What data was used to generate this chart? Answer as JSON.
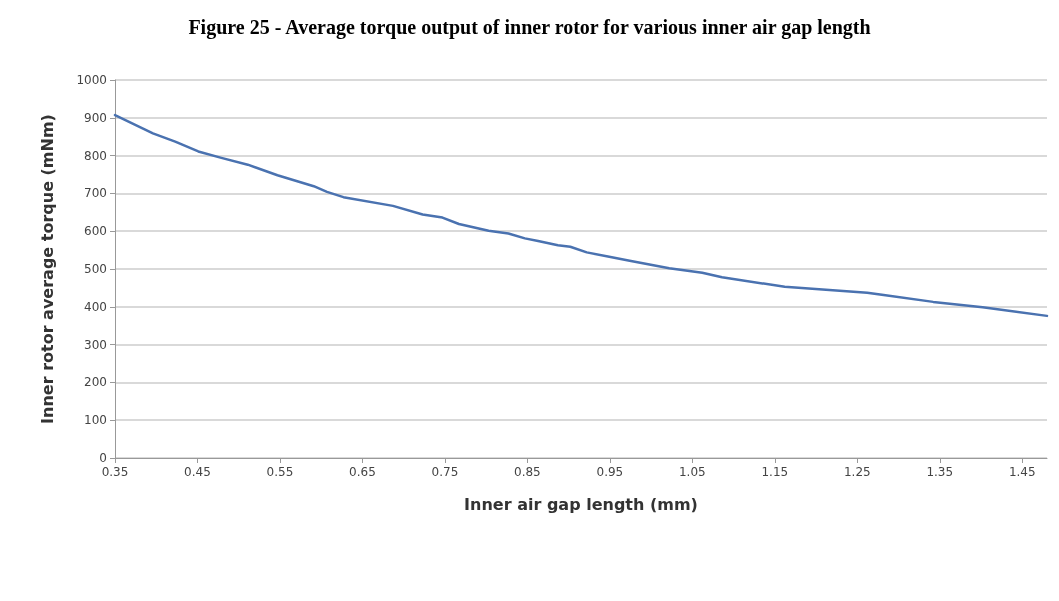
{
  "chart_data": {
    "type": "line",
    "title": "Figure 25 - Average torque output of inner rotor for various inner air gap length",
    "xlabel": "Inner air gap length (mm)",
    "ylabel": "Inner rotor average torque (mNm)",
    "x": [
      0.35,
      0.396,
      0.423,
      0.451,
      0.479,
      0.511,
      0.547,
      0.591,
      0.607,
      0.627,
      0.687,
      0.723,
      0.747,
      0.767,
      0.803,
      0.827,
      0.847,
      0.863,
      0.887,
      0.902,
      0.922,
      0.974,
      1.022,
      1.062,
      1.086,
      1.162,
      1.262,
      1.282,
      1.342,
      1.402,
      1.48
    ],
    "series": [
      {
        "color": "#4a72b0",
        "values": [
          907,
          859,
          837,
          811,
          794,
          776,
          748,
          719,
          704,
          690,
          667,
          644,
          636,
          619,
          601,
          594,
          581,
          574,
          563,
          559,
          544,
          522,
          502,
          490,
          478,
          453,
          437,
          431,
          413,
          399,
          376
        ]
      }
    ],
    "xlim": [
      0.35,
      1.48
    ],
    "xticks": [
      0.35,
      0.45,
      0.55,
      0.65,
      0.75,
      0.85,
      0.95,
      1.05,
      1.15,
      1.25,
      1.35,
      1.45
    ],
    "ylim": [
      0,
      1000
    ],
    "yticks": [
      0,
      100,
      200,
      300,
      400,
      500,
      600,
      700,
      800,
      900,
      1000
    ],
    "grid": "y",
    "marker": "none",
    "line_style": "solid"
  }
}
